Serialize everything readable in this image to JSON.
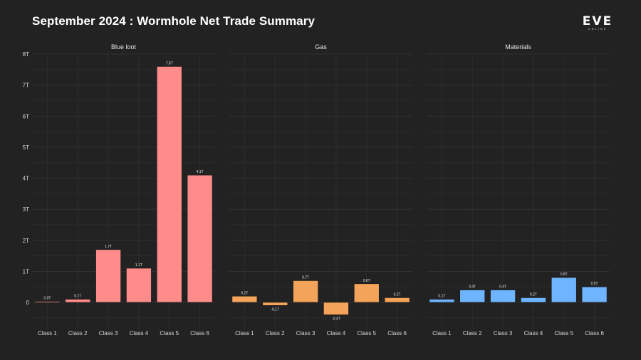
{
  "title": "September 2024 : Wormhole Net Trade Summary",
  "logo": {
    "main": "EVE",
    "sub": "ONLINE"
  },
  "colors": {
    "background": "#222222",
    "grid": "#333333",
    "blue_loot": "#ff8c8a",
    "gas": "#f4a45a",
    "materials": "#6fb4ff"
  },
  "chart_data": {
    "type": "bar",
    "title": "September 2024 : Wormhole Net Trade Summary",
    "xlabel": "",
    "ylabel": "",
    "ylim": [
      -0.9,
      8
    ],
    "yticks": [
      0,
      1,
      2,
      3,
      4,
      5,
      6,
      7,
      8
    ],
    "ytick_labels": [
      "0",
      "1T",
      "2T",
      "3T",
      "4T",
      "5T",
      "6T",
      "7T",
      "8T"
    ],
    "categories": [
      "Class 1",
      "Class 2",
      "Class 3",
      "Class 4",
      "Class 5",
      "Class 6"
    ],
    "grid": true,
    "facets": [
      {
        "name": "Blue loot",
        "color_key": "blue_loot",
        "values": [
          0.03,
          0.1,
          1.7,
          1.1,
          7.6,
          4.1
        ],
        "labels": [
          "0.0T",
          "0.1T",
          "1.7T",
          "1.1T",
          "7.6T",
          "4.1T"
        ]
      },
      {
        "name": "Gas",
        "color_key": "gas",
        "values": [
          0.2,
          -0.1,
          0.7,
          -0.4,
          0.6,
          0.15
        ],
        "labels": [
          "0.2T",
          "-0.1T",
          "0.7T",
          "-0.4T",
          "0.6T",
          "0.2T"
        ]
      },
      {
        "name": "Materials",
        "color_key": "materials",
        "values": [
          0.1,
          0.4,
          0.4,
          0.15,
          0.8,
          0.5
        ],
        "labels": [
          "0.1T",
          "0.4T",
          "0.4T",
          "0.2T",
          "0.8T",
          "0.5T"
        ]
      }
    ]
  }
}
